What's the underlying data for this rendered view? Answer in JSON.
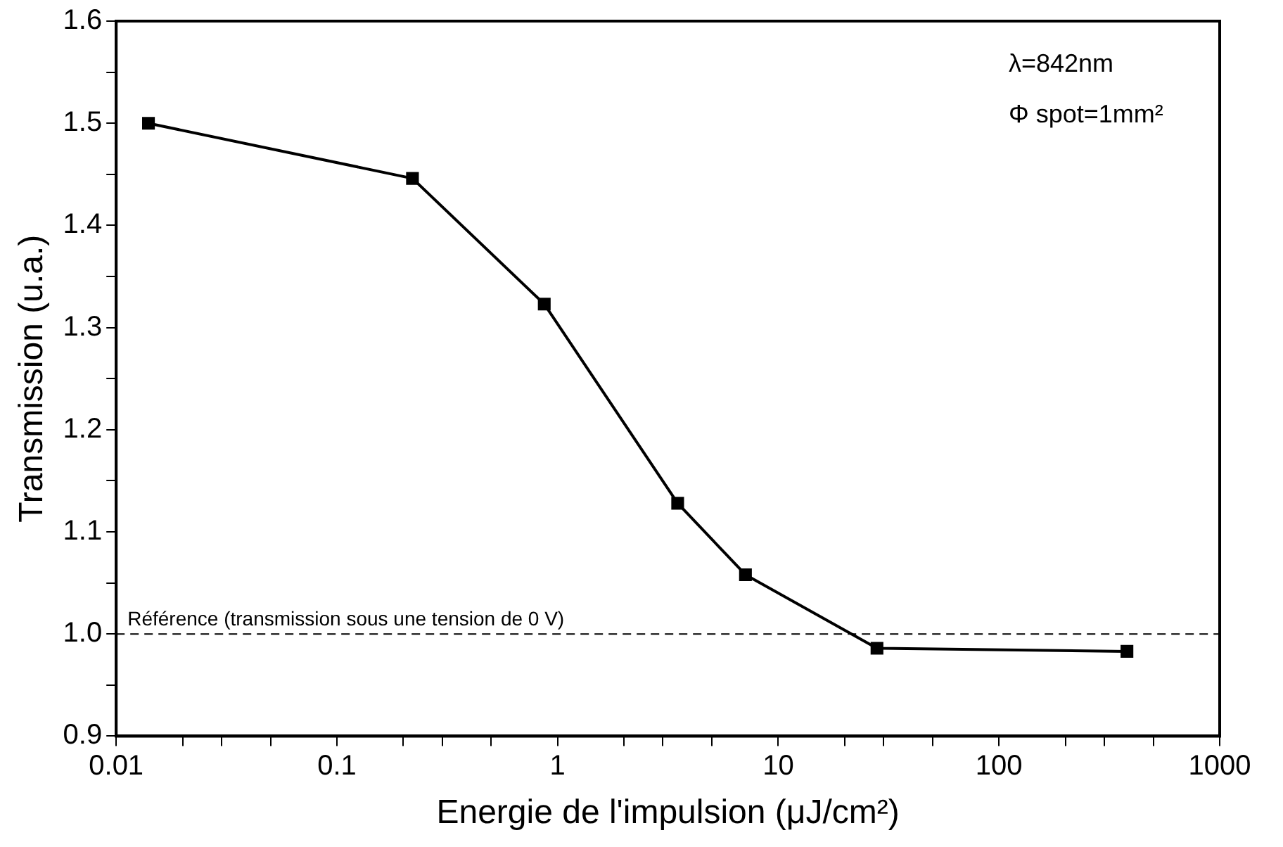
{
  "chart_data": {
    "type": "line",
    "xlabel": "Energie de l'impulsion (μJ/cm²)",
    "ylabel": "Transmission (u.a.)",
    "log": "x",
    "grid": false,
    "legend": false,
    "marker": "square",
    "line_style": "solid",
    "x": [
      0.014,
      0.22,
      0.87,
      3.5,
      7.1,
      28,
      380
    ],
    "series": [
      {
        "color": "#000000",
        "values": [
          1.5,
          1.446,
          1.323,
          1.128,
          1.058,
          0.986,
          0.983
        ]
      }
    ],
    "xlim": [
      0.01,
      1000
    ],
    "xticks": [
      0.01,
      {
        "value": 0.02,
        "label": null
      },
      {
        "value": 0.03,
        "label": null
      },
      {
        "value": 0.05,
        "label": null
      },
      0.1,
      {
        "value": 0.2,
        "label": null
      },
      {
        "value": 0.3,
        "label": null
      },
      {
        "value": 0.5,
        "label": null
      },
      1,
      {
        "value": 2,
        "label": null
      },
      {
        "value": 3,
        "label": null
      },
      {
        "value": 5,
        "label": null
      },
      10,
      {
        "value": 20,
        "label": null
      },
      {
        "value": 30,
        "label": null
      },
      {
        "value": 50,
        "label": null
      },
      100,
      {
        "value": 200,
        "label": null
      },
      {
        "value": 300,
        "label": null
      },
      {
        "value": 500,
        "label": null
      },
      1000
    ],
    "ylim": [
      0.9,
      1.6
    ],
    "yticks": [
      0.9,
      {
        "value": 0.95,
        "label": null
      },
      {
        "value": 1,
        "label": "1.0"
      },
      {
        "value": 1.05,
        "label": null
      },
      1.1,
      {
        "value": 1.15,
        "label": null
      },
      1.2,
      {
        "value": 1.25,
        "label": null
      },
      1.3,
      {
        "value": 1.35,
        "label": null
      },
      1.4,
      {
        "value": 1.45,
        "label": null
      },
      1.5,
      {
        "value": 1.55,
        "label": null
      },
      1.6
    ],
    "ref_lines": [
      {
        "axis": "y",
        "value": 1,
        "label": "Référence (transmission sous une tension de 0 V)",
        "line_style": "dashed",
        "color": "#000000"
      }
    ],
    "annotations": [
      "λ=842nm",
      "Φ spot=1mm²"
    ]
  }
}
